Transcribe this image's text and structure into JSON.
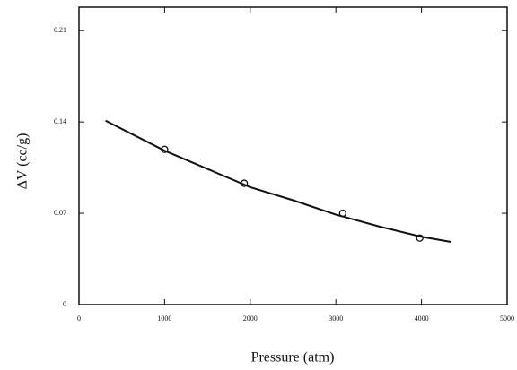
{
  "chart_data": {
    "type": "scatter",
    "x_label": "Pressure (atm)",
    "y_label": "ΔV (cc/g)",
    "xlim": [
      0,
      5000
    ],
    "xticks": [
      0,
      1000,
      2000,
      3000,
      4000,
      5000
    ],
    "ylim": [
      0,
      0.228
    ],
    "yticks": [
      0,
      0.07,
      0.14,
      0.21
    ],
    "color": "#111111",
    "series": [
      {
        "mode": "markers",
        "x": [
          1000,
          1930,
          3080,
          3980
        ],
        "values": [
          0.119,
          0.093,
          0.07,
          0.051
        ]
      },
      {
        "mode": "line",
        "x": [
          310,
          1000,
          1500,
          2000,
          2500,
          3000,
          3500,
          4000,
          4350
        ],
        "values": [
          0.141,
          0.118,
          0.104,
          0.09,
          0.08,
          0.069,
          0.06,
          0.052,
          0.048
        ]
      }
    ]
  }
}
